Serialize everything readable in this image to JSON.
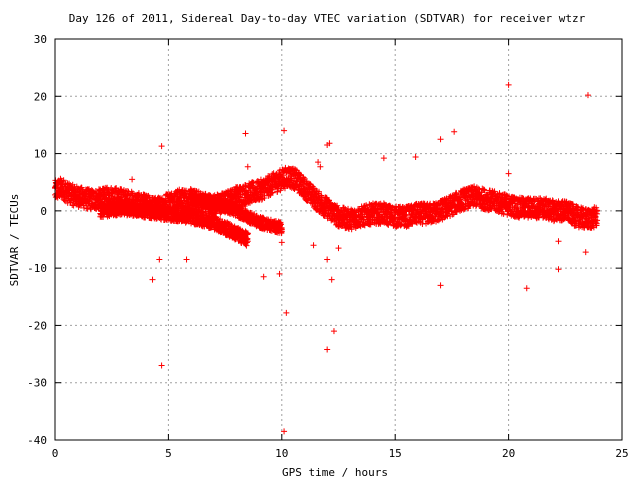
{
  "chart_data": {
    "type": "scatter",
    "title": "Day 126 of 2011, Sidereal Day-to-day VTEC variation (SDTVAR) for receiver wtzr",
    "xlabel": "GPS time / hours",
    "ylabel": "SDTVAR / TECUs",
    "xlim": [
      0,
      25
    ],
    "ylim": [
      -40,
      30
    ],
    "xticks": [
      "0",
      "5",
      "10",
      "15",
      "20",
      "25"
    ],
    "yticks": [
      "-40",
      "-30",
      "-20",
      "-10",
      "0",
      "10",
      "20",
      "30"
    ],
    "grid": true,
    "legend": "none",
    "marker": "plus",
    "series_color": "#ff0000",
    "bands": [
      {
        "x": [
          0.0,
          0.3,
          0.6,
          1.0,
          1.5,
          2.0,
          2.5,
          3.0,
          3.5,
          4.0,
          4.5,
          5.0,
          5.5,
          6.0,
          6.5,
          7.0,
          7.5,
          8.0,
          8.5,
          9.0,
          9.5,
          10.0,
          10.3,
          10.6,
          11.0,
          11.5,
          12.0,
          12.5,
          13.0,
          13.5,
          14.0,
          14.5,
          15.0,
          15.5,
          16.0,
          16.5,
          17.0,
          17.5,
          18.0,
          18.5,
          19.0,
          19.5,
          20.0,
          20.5,
          21.0,
          21.5,
          22.0,
          22.5,
          23.0,
          23.5,
          23.9
        ],
        "y": [
          3.5,
          4.0,
          3.0,
          2.5,
          2.0,
          2.0,
          2.5,
          2.0,
          1.5,
          1.0,
          0.5,
          1.5,
          2.0,
          2.0,
          1.5,
          1.0,
          1.5,
          2.5,
          3.0,
          3.5,
          4.5,
          5.5,
          6.0,
          5.5,
          4.0,
          2.0,
          0.5,
          -1.0,
          -1.5,
          -1.0,
          -0.5,
          -0.5,
          -1.0,
          -1.0,
          -0.5,
          -0.5,
          0.0,
          1.0,
          2.0,
          2.5,
          2.0,
          1.5,
          1.0,
          0.5,
          0.5,
          0.5,
          0.0,
          0.0,
          -1.0,
          -1.5,
          -1.0
        ],
        "spread": 1.8
      },
      {
        "x": [
          2.0,
          3.0,
          4.0,
          5.0,
          6.0,
          7.0,
          7.5,
          8.0,
          8.5
        ],
        "y": [
          0.0,
          0.5,
          0.0,
          -0.5,
          -1.0,
          -2.0,
          -3.0,
          -4.0,
          -5.0
        ],
        "spread": 1.2
      },
      {
        "x": [
          6.0,
          7.0,
          8.0,
          9.0,
          10.0
        ],
        "y": [
          2.0,
          1.5,
          0.0,
          -2.0,
          -3.0
        ],
        "spread": 1.0
      }
    ],
    "outliers": [
      {
        "x": 4.3,
        "y": -12
      },
      {
        "x": 4.7,
        "y": -27
      },
      {
        "x": 4.7,
        "y": 11.3
      },
      {
        "x": 4.6,
        "y": -8.5
      },
      {
        "x": 5.8,
        "y": -8.5
      },
      {
        "x": 3.4,
        "y": 5.5
      },
      {
        "x": 8.4,
        "y": 13.5
      },
      {
        "x": 8.5,
        "y": 7.7
      },
      {
        "x": 9.2,
        "y": -11.5
      },
      {
        "x": 9.9,
        "y": -11
      },
      {
        "x": 10.1,
        "y": -38.5
      },
      {
        "x": 10.1,
        "y": 14
      },
      {
        "x": 10.2,
        "y": -17.8
      },
      {
        "x": 10.0,
        "y": -5.5
      },
      {
        "x": 11.4,
        "y": -6
      },
      {
        "x": 12.0,
        "y": -24.2
      },
      {
        "x": 12.0,
        "y": -8.5
      },
      {
        "x": 12.2,
        "y": -12
      },
      {
        "x": 12.3,
        "y": -21
      },
      {
        "x": 12.0,
        "y": 11.5
      },
      {
        "x": 12.1,
        "y": 11.8
      },
      {
        "x": 14.5,
        "y": 9.2
      },
      {
        "x": 15.9,
        "y": 9.4
      },
      {
        "x": 17.0,
        "y": 12.5
      },
      {
        "x": 17.6,
        "y": 13.8
      },
      {
        "x": 17.0,
        "y": -13
      },
      {
        "x": 20.0,
        "y": 22
      },
      {
        "x": 20.0,
        "y": 6.5
      },
      {
        "x": 20.8,
        "y": -13.5
      },
      {
        "x": 22.2,
        "y": -10.2
      },
      {
        "x": 22.2,
        "y": -5.3
      },
      {
        "x": 23.5,
        "y": 20.2
      },
      {
        "x": 23.4,
        "y": -7.2
      },
      {
        "x": 12.5,
        "y": -6.5
      },
      {
        "x": 11.7,
        "y": 7.7
      },
      {
        "x": 11.6,
        "y": 8.5
      }
    ]
  }
}
